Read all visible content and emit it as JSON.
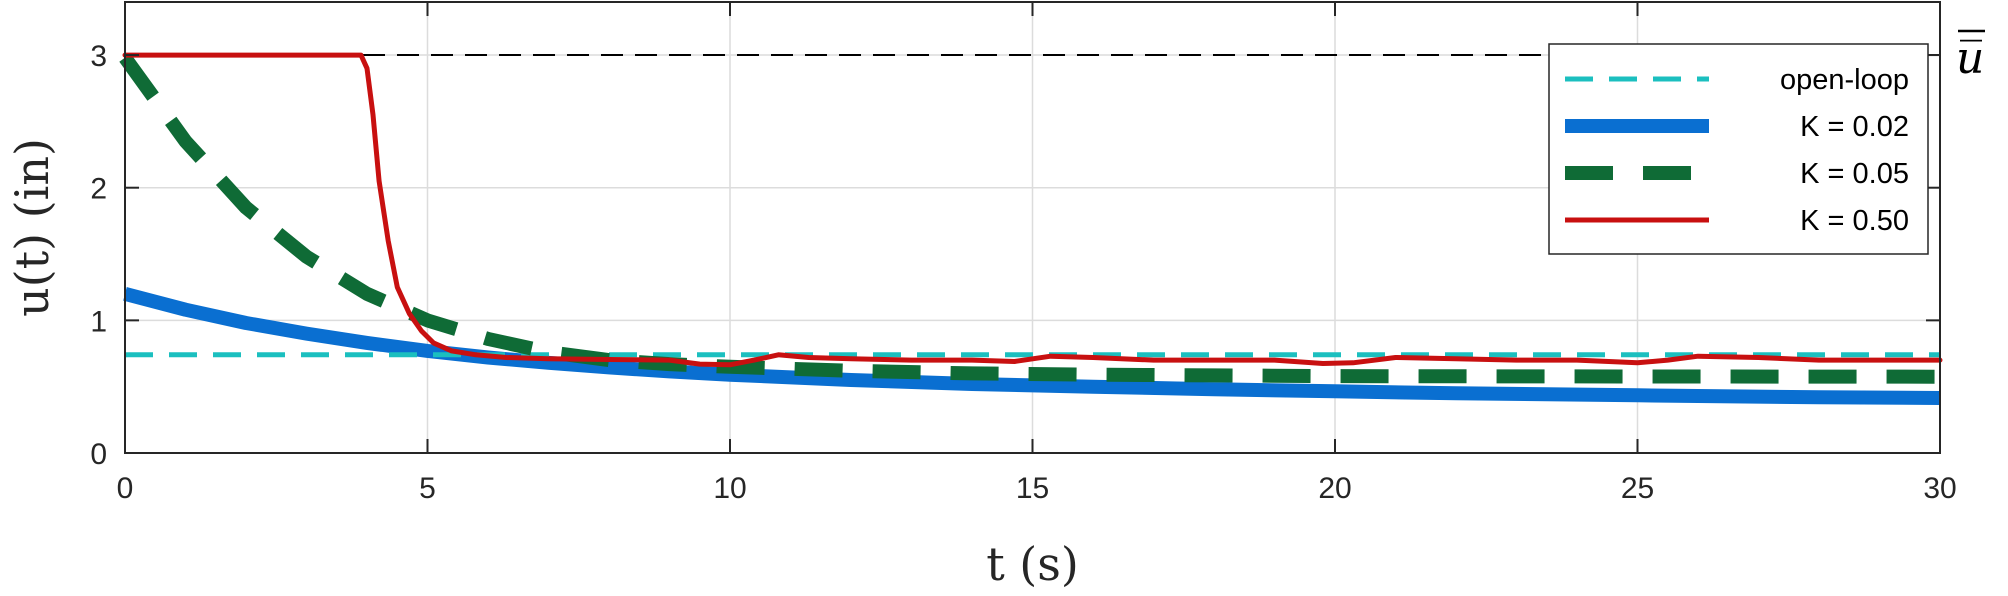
{
  "chart_data": {
    "type": "line",
    "xlabel": "t (s)",
    "ylabel": "u(t) (in)",
    "xlim": [
      0,
      30
    ],
    "ylim": [
      0,
      3.4
    ],
    "x_ticks": [
      "0",
      "5",
      "10",
      "15",
      "20",
      "25",
      "30"
    ],
    "y_ticks": [
      "0",
      "1",
      "2",
      "3"
    ],
    "grid": true,
    "legend_position": "top-right",
    "reference_line": {
      "label": "u̅",
      "y": 3.0,
      "color": "#000000",
      "style": "dashed"
    },
    "series": [
      {
        "name": "open-loop",
        "color": "#1bbfbf",
        "style": "dashed",
        "x": [
          0,
          30
        ],
        "y": [
          0.74,
          0.74
        ]
      },
      {
        "name": "K = 0.02",
        "color": "#0a6fd1",
        "style": "solid-thick",
        "x": [
          0,
          1,
          2,
          3,
          4,
          5,
          6,
          7,
          8,
          9,
          10,
          12,
          14,
          16,
          18,
          20,
          22,
          25,
          28,
          30
        ],
        "y": [
          1.2,
          1.08,
          0.98,
          0.9,
          0.83,
          0.77,
          0.72,
          0.68,
          0.645,
          0.615,
          0.59,
          0.55,
          0.52,
          0.5,
          0.48,
          0.465,
          0.45,
          0.435,
          0.42,
          0.415
        ]
      },
      {
        "name": "K = 0.05",
        "color": "#0f6b36",
        "style": "dashed-thick",
        "x": [
          0,
          1,
          2,
          3,
          4,
          5,
          6,
          7,
          8,
          9,
          10,
          12,
          14,
          16,
          18,
          20,
          22,
          25,
          28,
          30
        ],
        "y": [
          2.98,
          2.35,
          1.85,
          1.48,
          1.2,
          1.0,
          0.86,
          0.76,
          0.7,
          0.67,
          0.65,
          0.62,
          0.6,
          0.59,
          0.585,
          0.58,
          0.578,
          0.577,
          0.576,
          0.575
        ]
      },
      {
        "name": "K = 0.50",
        "color": "#c81010",
        "style": "solid",
        "x": [
          0,
          3.9,
          4.0,
          4.1,
          4.2,
          4.35,
          4.5,
          4.7,
          4.9,
          5.1,
          5.4,
          5.8,
          6.3,
          7,
          8,
          9,
          9.5,
          10,
          10.4,
          10.8,
          11.3,
          12,
          13,
          14,
          14.7,
          15.3,
          16,
          17,
          18,
          19,
          19.8,
          20.3,
          21,
          22,
          23,
          24,
          25,
          25.5,
          26,
          27,
          28,
          29,
          30
        ],
        "y": [
          3.0,
          3.0,
          2.9,
          2.55,
          2.05,
          1.6,
          1.25,
          1.05,
          0.92,
          0.83,
          0.77,
          0.74,
          0.72,
          0.71,
          0.705,
          0.7,
          0.67,
          0.665,
          0.7,
          0.74,
          0.72,
          0.71,
          0.7,
          0.7,
          0.69,
          0.73,
          0.72,
          0.7,
          0.7,
          0.7,
          0.675,
          0.68,
          0.72,
          0.71,
          0.7,
          0.7,
          0.68,
          0.7,
          0.73,
          0.72,
          0.7,
          0.7,
          0.7
        ]
      }
    ]
  }
}
